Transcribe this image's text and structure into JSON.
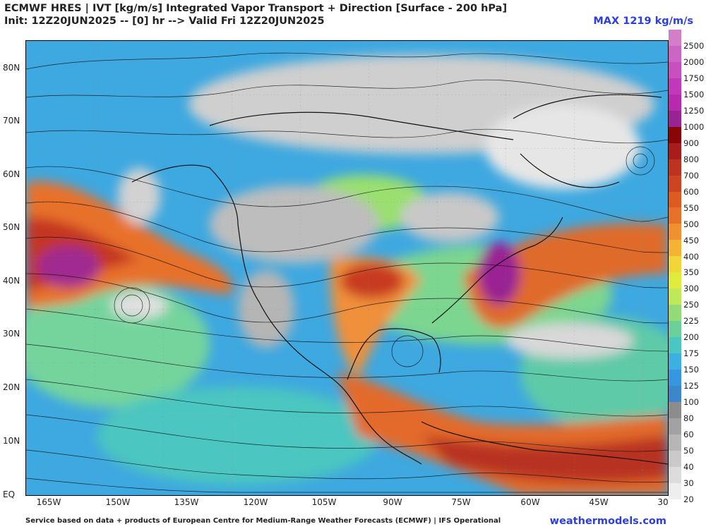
{
  "header": {
    "title": "ECMWF HRES | IVT [kg/m/s] Integrated Vapor Transport + Direction [Surface - 200 hPa]",
    "init": "Init: 12Z20JUN2025 -- [0] hr --> Valid Fri 12Z20JUN2025",
    "max": "MAX 1219 kg/m/s"
  },
  "map": {
    "lat_labels": [
      "80N",
      "70N",
      "60N",
      "50N",
      "40N",
      "30N",
      "20N",
      "10N",
      "EQ"
    ],
    "lon_labels": [
      "165W",
      "150W",
      "135W",
      "120W",
      "105W",
      "90W",
      "75W",
      "60W",
      "45W",
      "30"
    ]
  },
  "colorbar": {
    "levels": [
      "2500",
      "2000",
      "1750",
      "1500",
      "1250",
      "1000",
      "900",
      "800",
      "700",
      "600",
      "550",
      "500",
      "450",
      "400",
      "350",
      "300",
      "250",
      "225",
      "200",
      "175",
      "150",
      "125",
      "100",
      "80",
      "60",
      "50",
      "40",
      "30",
      "20"
    ],
    "colors": [
      "#d27fc8",
      "#cc66c6",
      "#c84fc0",
      "#c238bb",
      "#b72aae",
      "#9a2393",
      "#8a0606",
      "#a81c1c",
      "#bb3420",
      "#cc4420",
      "#dd5a22",
      "#e8712a",
      "#f09030",
      "#f6b234",
      "#f0d63a",
      "#e0ec3c",
      "#bfe85a",
      "#94da78",
      "#6cd09a",
      "#4cc6c0",
      "#3cb0e0",
      "#3696e0",
      "#3c86cc",
      "#8c8c8c",
      "#a2a2a2",
      "#b6b6b6",
      "#cacaca",
      "#dcdcdc",
      "#eeeeee"
    ]
  },
  "footer": {
    "credit": "Service based on data + products of European Centre for Medium-Range Weather Forecasts (ECMWF) | IFS Operational",
    "site": "weathermodels.com"
  }
}
